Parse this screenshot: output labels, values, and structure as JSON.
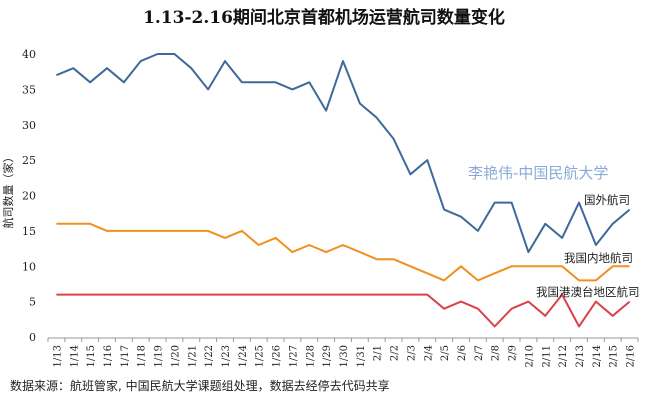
{
  "chart_data": {
    "type": "line",
    "title": "1.13-2.16期间北京首都机场运营航司数量变化",
    "ylabel": "航司数量（家）",
    "ylim": [
      0,
      40
    ],
    "yticks": [
      0,
      5,
      10,
      15,
      20,
      25,
      30,
      35,
      40
    ],
    "grid": false,
    "x": [
      "1/13",
      "1/14",
      "1/15",
      "1/16",
      "1/17",
      "1/18",
      "1/19",
      "1/20",
      "1/21",
      "1/22",
      "1/23",
      "1/24",
      "1/25",
      "1/26",
      "1/27",
      "1/28",
      "1/29",
      "1/30",
      "1/31",
      "2/1",
      "2/2",
      "2/3",
      "2/4",
      "2/5",
      "2/6",
      "2/7",
      "2/8",
      "2/9",
      "2/10",
      "2/11",
      "2/12",
      "2/13",
      "2/14",
      "2/15",
      "2/16"
    ],
    "xtick_labels": [
      "1/13",
      "1/14",
      "1/15",
      "1/16",
      "1/17",
      "1/18",
      "1/19",
      "1/20",
      "1/21",
      "1/22",
      "1/23",
      "1/24",
      "1/25",
      "1/26",
      "1/27",
      "1/28",
      "1/29",
      "1/30",
      "1/31",
      "2/1",
      "2/2",
      "2/3",
      "2/4",
      "2/5",
      "2/6",
      "2/7",
      "2/8",
      "2/9",
      "2/10",
      "2/11",
      "2/12",
      "2/13",
      "2/14",
      "2/15",
      "2/16"
    ],
    "series": [
      {
        "name": "国外航司",
        "color": "#3e6a9a",
        "values": [
          37,
          38,
          36,
          38,
          36,
          39,
          40,
          40,
          38,
          35,
          39,
          36,
          36,
          36,
          35,
          36,
          32,
          39,
          33,
          31,
          28,
          23,
          25,
          18,
          17,
          15,
          19,
          19,
          12,
          16,
          14,
          19,
          13,
          16,
          18
        ]
      },
      {
        "name": "我国内地航司",
        "color": "#f0901e",
        "values": [
          16,
          16,
          16,
          15,
          15,
          15,
          15,
          15,
          15,
          15,
          14,
          15,
          13,
          14,
          12,
          13,
          12,
          13,
          12,
          11,
          11,
          10,
          9,
          8,
          10,
          8,
          9,
          10,
          10,
          10,
          10,
          8,
          8,
          10,
          10
        ]
      },
      {
        "name": "我国港澳台地区航司",
        "color": "#d9424b",
        "values": [
          6,
          6,
          6,
          6,
          6,
          6,
          6,
          6,
          6,
          6,
          6,
          6,
          6,
          6,
          6,
          6,
          6,
          6,
          6,
          6,
          6,
          6,
          6,
          4,
          5,
          4,
          1.5,
          4,
          5,
          3,
          6,
          1.5,
          5,
          3,
          5
        ]
      }
    ]
  },
  "watermark": "李艳伟-中国民航大学",
  "source": "数据来源：航班管家, 中国民航大学课题组处理，数据去经停去代码共享"
}
